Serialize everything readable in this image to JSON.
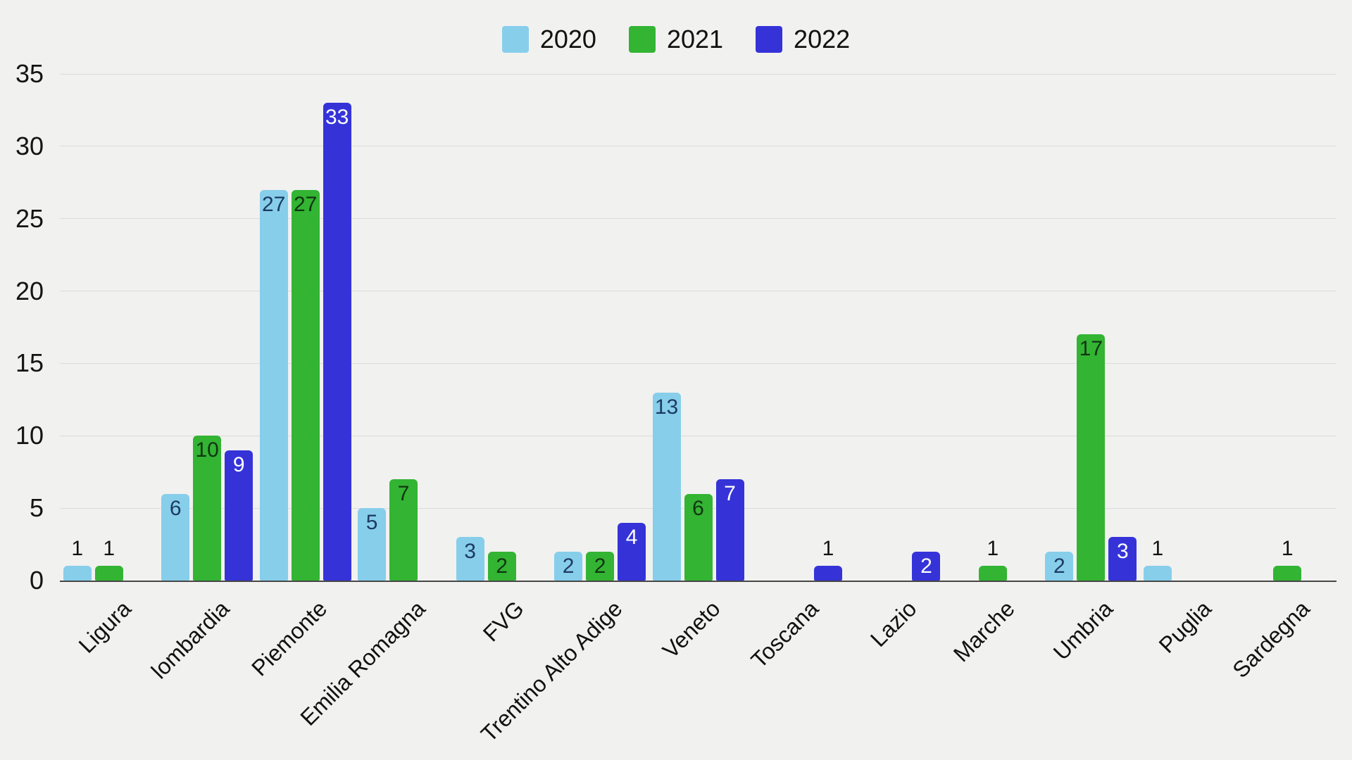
{
  "chart_data": {
    "type": "bar",
    "title": "",
    "xlabel": "",
    "ylabel": "",
    "categories": [
      "Ligura",
      "lombardia",
      "Piemonte",
      "Emilia Romagna",
      "FVG",
      "Trentino Alto Adige",
      "Veneto",
      "Toscana",
      "Lazio",
      "Marche",
      "Umbria",
      "Puglia",
      "Sardegna"
    ],
    "series": [
      {
        "name": "2020",
        "color": "#87CEEB",
        "label_color": "#1d3a63",
        "values": [
          1,
          6,
          27,
          5,
          3,
          2,
          13,
          0,
          0,
          0,
          2,
          1,
          0
        ]
      },
      {
        "name": "2021",
        "color": "#33B433",
        "label_color": "#113511",
        "values": [
          1,
          10,
          27,
          7,
          2,
          2,
          6,
          0,
          0,
          1,
          17,
          0,
          1
        ]
      },
      {
        "name": "2022",
        "color": "#3533D8",
        "label_color": "#ffffff",
        "values": [
          0,
          9,
          33,
          0,
          0,
          4,
          7,
          1,
          2,
          0,
          3,
          0,
          0
        ]
      }
    ],
    "ylim": [
      0,
      35
    ],
    "yticks": [
      0,
      5,
      10,
      15,
      20,
      25,
      30,
      35
    ],
    "grid": true,
    "legend_position": "top center",
    "outside_label_color": "#111111",
    "layout": {
      "background": "#F1F1F0",
      "gridline_color": "#DBDBD9",
      "axis_line_color": "#474747"
    }
  }
}
